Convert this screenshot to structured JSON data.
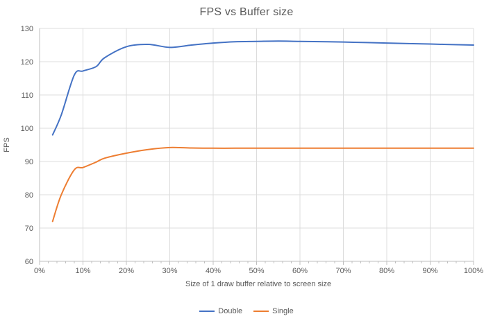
{
  "chart_data": {
    "type": "line",
    "title": "FPS vs Buffer size",
    "xlabel": "Size of 1 draw buffer relative to screen size",
    "ylabel": "FPS",
    "xlim": [
      0,
      100
    ],
    "ylim": [
      60,
      130
    ],
    "grid": true,
    "legend_position": "bottom",
    "x_minor_tick_step": 2,
    "x_ticks": [
      {
        "value": 0,
        "label": "0%"
      },
      {
        "value": 10,
        "label": "10%"
      },
      {
        "value": 20,
        "label": "20%"
      },
      {
        "value": 30,
        "label": "30%"
      },
      {
        "value": 40,
        "label": "40%"
      },
      {
        "value": 50,
        "label": "50%"
      },
      {
        "value": 60,
        "label": "60%"
      },
      {
        "value": 70,
        "label": "70%"
      },
      {
        "value": 80,
        "label": "80%"
      },
      {
        "value": 90,
        "label": "90%"
      },
      {
        "value": 100,
        "label": "100%"
      }
    ],
    "y_ticks": [
      {
        "value": 60,
        "label": "60"
      },
      {
        "value": 70,
        "label": "70"
      },
      {
        "value": 80,
        "label": "80"
      },
      {
        "value": 90,
        "label": "90"
      },
      {
        "value": 100,
        "label": "100"
      },
      {
        "value": 110,
        "label": "110"
      },
      {
        "value": 120,
        "label": "120"
      },
      {
        "value": 130,
        "label": "130"
      }
    ],
    "series": [
      {
        "name": "Double",
        "color": "#4472C4",
        "x": [
          3,
          5,
          8,
          10,
          13,
          15,
          20,
          25,
          30,
          35,
          40,
          45,
          50,
          55,
          60,
          70,
          80,
          90,
          100
        ],
        "y": [
          98,
          104,
          116,
          117.2,
          118.5,
          121.2,
          124.5,
          125.2,
          124.3,
          125,
          125.6,
          126,
          126.1,
          126.2,
          126.1,
          125.9,
          125.6,
          125.3,
          125
        ]
      },
      {
        "name": "Single",
        "color": "#ED7D31",
        "x": [
          3,
          5,
          8,
          10,
          13,
          15,
          20,
          25,
          30,
          35,
          40,
          45,
          50,
          55,
          60,
          70,
          80,
          90,
          100
        ],
        "y": [
          72,
          80,
          87.5,
          88.2,
          89.8,
          91,
          92.5,
          93.6,
          94.2,
          94.05,
          94,
          94,
          94,
          94,
          94,
          94,
          94,
          94,
          94
        ]
      }
    ]
  },
  "style": {
    "background": "#FFFFFF",
    "text_color": "#595959",
    "grid_color": "#DCDCDC",
    "axis_color": "#BFBFBF",
    "series_line_width": 2
  }
}
